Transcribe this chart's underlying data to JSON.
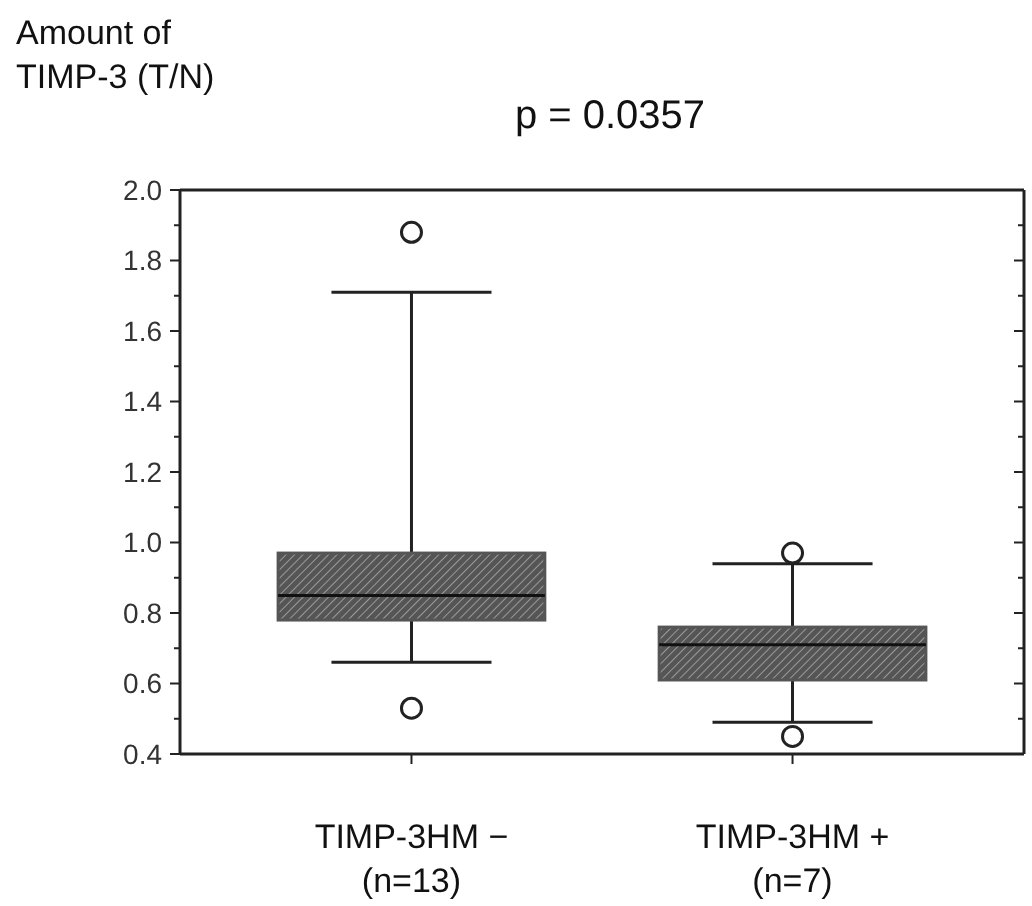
{
  "chart_data": {
    "type": "box",
    "title": "p = 0.0357",
    "ylabel": "Amount of\nTIMP-3 (T/N)",
    "categories": [
      "TIMP-3HM −\n(n=13)",
      "TIMP-3HM +\n(n=7)"
    ],
    "boxes": [
      {
        "low": 0.66,
        "q1": 0.78,
        "median": 0.85,
        "q3": 0.97,
        "high": 1.71,
        "outliers": [
          0.53,
          1.88
        ]
      },
      {
        "low": 0.49,
        "q1": 0.61,
        "median": 0.71,
        "q3": 0.76,
        "high": 0.94,
        "outliers": [
          0.45,
          0.97
        ]
      }
    ],
    "color": "#555555",
    "ylim": [
      0.4,
      2.0
    ],
    "yticks": [
      {
        "value": 0.4,
        "label": "0.4"
      },
      {
        "value": 0.5,
        "label": null
      },
      {
        "value": 0.6,
        "label": "0.6"
      },
      {
        "value": 0.7,
        "label": null
      },
      {
        "value": 0.8,
        "label": "0.8"
      },
      {
        "value": 0.9,
        "label": null
      },
      {
        "value": 1.0,
        "label": "1.0"
      },
      {
        "value": 1.1,
        "label": null
      },
      {
        "value": 1.2,
        "label": "1.2"
      },
      {
        "value": 1.3,
        "label": null
      },
      {
        "value": 1.4,
        "label": "1.4"
      },
      {
        "value": 1.5,
        "label": null
      },
      {
        "value": 1.6,
        "label": "1.6"
      },
      {
        "value": 1.7,
        "label": null
      },
      {
        "value": 1.8,
        "label": "1.8"
      },
      {
        "value": 1.9,
        "label": null
      },
      {
        "value": 2.0,
        "label": "2.0"
      }
    ],
    "grid": false
  }
}
